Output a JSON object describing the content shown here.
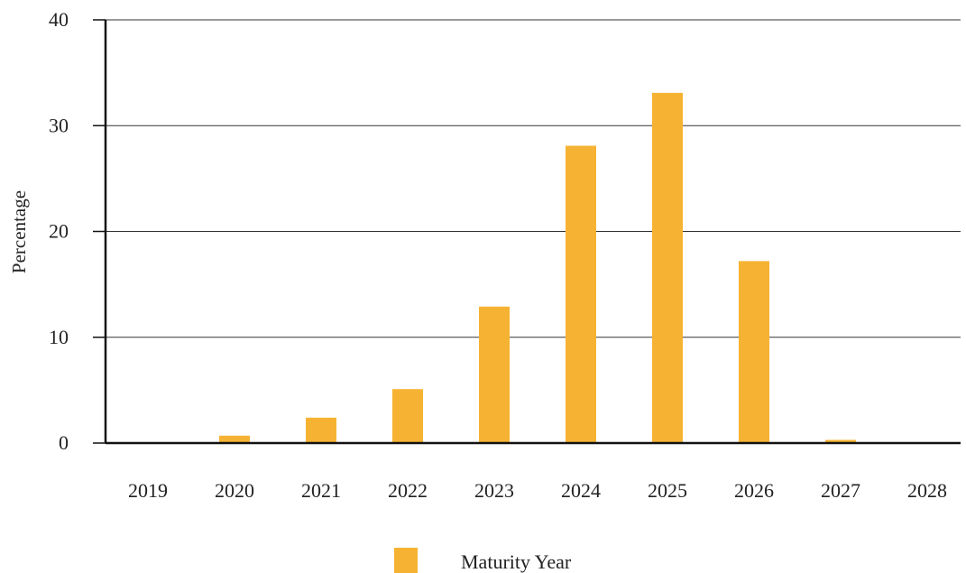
{
  "chart_data": {
    "type": "bar",
    "categories": [
      "2019",
      "2020",
      "2021",
      "2022",
      "2023",
      "2024",
      "2025",
      "2026",
      "2027",
      "2028"
    ],
    "series": [
      {
        "name": "Maturity Year",
        "values": [
          0.0,
          0.7,
          2.4,
          5.1,
          12.9,
          28.1,
          33.1,
          17.2,
          0.3,
          0.0
        ]
      }
    ],
    "title": "",
    "xlabel": "",
    "ylabel": "Percentage",
    "ylim": [
      0,
      40
    ],
    "yticks": [
      "0",
      "10",
      "20",
      "30",
      "40"
    ],
    "grid": true,
    "legend_position": "bottom-center",
    "colors": {
      "bar": "#F6B333",
      "grid": "#333333",
      "axis": "#111111"
    }
  }
}
